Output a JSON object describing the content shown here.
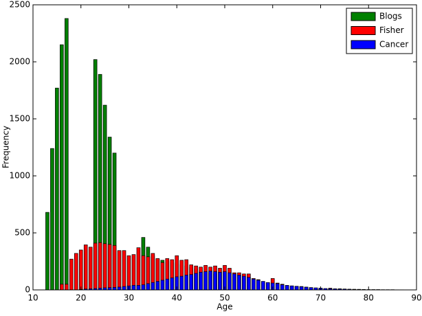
{
  "chart_data": {
    "type": "bar",
    "xlabel": "Age",
    "ylabel": "Frequency",
    "x": [
      13,
      14,
      15,
      16,
      17,
      18,
      19,
      20,
      21,
      22,
      23,
      24,
      25,
      26,
      27,
      28,
      29,
      30,
      31,
      32,
      33,
      34,
      35,
      36,
      37,
      38,
      39,
      40,
      41,
      42,
      43,
      44,
      45,
      46,
      47,
      48,
      49,
      50,
      51,
      52,
      53,
      54,
      55,
      56,
      57,
      58,
      59,
      60,
      61,
      62,
      63,
      64,
      65,
      66,
      67,
      68,
      69,
      70,
      71,
      72,
      73,
      74,
      75,
      76,
      77,
      78,
      79,
      80,
      81,
      82,
      83,
      84,
      85,
      86,
      87
    ],
    "series": [
      {
        "name": "Blogs",
        "color": "#008000",
        "values": [
          680,
          1240,
          1770,
          2150,
          2380,
          null,
          null,
          null,
          null,
          null,
          2020,
          1890,
          1620,
          1340,
          1200,
          null,
          null,
          null,
          null,
          null,
          460,
          375,
          300,
          270,
          260,
          250,
          240,
          230,
          220,
          210,
          200,
          185,
          170,
          160,
          150,
          140,
          null,
          null,
          null,
          null,
          null,
          null,
          null,
          null,
          null,
          null,
          null,
          null,
          null,
          null,
          null,
          null,
          null,
          null,
          null,
          null,
          null,
          null,
          null,
          null,
          null,
          null,
          null,
          null,
          null,
          null,
          null,
          null,
          null,
          null,
          null,
          null,
          null,
          null,
          null
        ]
      },
      {
        "name": "Fisher",
        "color": "#ff0000",
        "values": [
          null,
          null,
          null,
          50,
          50,
          270,
          320,
          350,
          395,
          375,
          410,
          415,
          405,
          400,
          390,
          345,
          345,
          300,
          310,
          370,
          300,
          290,
          320,
          275,
          240,
          275,
          265,
          300,
          260,
          265,
          220,
          210,
          200,
          215,
          200,
          210,
          190,
          215,
          190,
          150,
          150,
          140,
          140,
          100,
          90,
          70,
          60,
          100,
          60,
          50,
          40,
          35,
          30,
          30,
          25,
          20,
          15,
          15,
          10,
          15,
          10,
          10,
          8,
          6,
          5,
          5,
          null,
          null,
          null,
          null,
          null,
          null,
          null,
          null,
          null
        ]
      },
      {
        "name": "Cancer",
        "color": "#0000ff",
        "values": [
          null,
          null,
          null,
          null,
          null,
          null,
          null,
          5,
          8,
          10,
          12,
          15,
          18,
          20,
          22,
          25,
          30,
          35,
          40,
          40,
          45,
          55,
          65,
          75,
          85,
          95,
          105,
          115,
          120,
          130,
          135,
          145,
          155,
          160,
          165,
          160,
          155,
          160,
          150,
          140,
          130,
          120,
          110,
          95,
          85,
          75,
          65,
          60,
          55,
          45,
          40,
          35,
          32,
          28,
          24,
          20,
          18,
          15,
          12,
          10,
          9,
          8,
          7,
          6,
          5,
          4,
          4,
          3,
          3,
          3,
          2,
          2,
          2,
          1,
          1
        ]
      }
    ],
    "xlim": [
      10,
      90
    ],
    "xticks": [
      10,
      20,
      30,
      40,
      50,
      60,
      70,
      80,
      90
    ],
    "ylim": [
      0,
      2500
    ],
    "yticks": [
      0,
      500,
      1000,
      1500,
      2000,
      2500
    ],
    "legend": "upper right"
  }
}
